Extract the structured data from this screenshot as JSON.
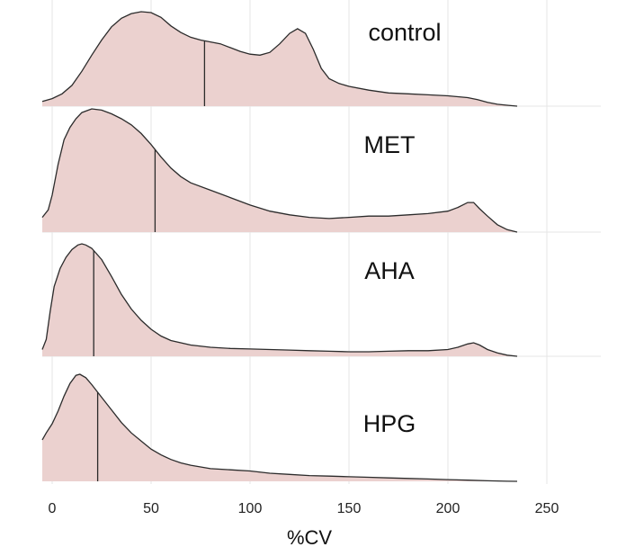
{
  "chart_data": {
    "type": "area",
    "subtype": "ridgeline density",
    "xlabel": "%CV",
    "ylabel": "",
    "xlim": [
      -5,
      265
    ],
    "xticks": [
      0,
      50,
      100,
      150,
      200,
      250
    ],
    "grid": true,
    "legend": "none",
    "fill_color": "#ebd1cf",
    "line_color": "#2b2b2b",
    "grid_color": "#e6e6e6",
    "series": [
      {
        "name": "control",
        "median": 77,
        "points": [
          [
            -5,
            0.05
          ],
          [
            0,
            0.08
          ],
          [
            5,
            0.13
          ],
          [
            10,
            0.22
          ],
          [
            15,
            0.37
          ],
          [
            20,
            0.54
          ],
          [
            25,
            0.7
          ],
          [
            30,
            0.84
          ],
          [
            35,
            0.93
          ],
          [
            40,
            0.98
          ],
          [
            45,
            1.0
          ],
          [
            50,
            0.99
          ],
          [
            55,
            0.94
          ],
          [
            60,
            0.85
          ],
          [
            65,
            0.78
          ],
          [
            70,
            0.73
          ],
          [
            75,
            0.7
          ],
          [
            80,
            0.68
          ],
          [
            85,
            0.66
          ],
          [
            90,
            0.62
          ],
          [
            95,
            0.58
          ],
          [
            100,
            0.55
          ],
          [
            105,
            0.54
          ],
          [
            110,
            0.57
          ],
          [
            115,
            0.66
          ],
          [
            120,
            0.77
          ],
          [
            124,
            0.82
          ],
          [
            128,
            0.77
          ],
          [
            132,
            0.6
          ],
          [
            136,
            0.4
          ],
          [
            140,
            0.29
          ],
          [
            145,
            0.24
          ],
          [
            150,
            0.21
          ],
          [
            160,
            0.17
          ],
          [
            170,
            0.14
          ],
          [
            180,
            0.13
          ],
          [
            190,
            0.12
          ],
          [
            200,
            0.11
          ],
          [
            205,
            0.1
          ],
          [
            210,
            0.09
          ],
          [
            215,
            0.07
          ],
          [
            220,
            0.04
          ],
          [
            225,
            0.02
          ],
          [
            230,
            0.01
          ],
          [
            235,
            0.0
          ]
        ]
      },
      {
        "name": "MET",
        "median": 52,
        "points": [
          [
            -5,
            0.12
          ],
          [
            -2,
            0.18
          ],
          [
            0,
            0.3
          ],
          [
            3,
            0.55
          ],
          [
            6,
            0.75
          ],
          [
            9,
            0.85
          ],
          [
            12,
            0.92
          ],
          [
            15,
            0.97
          ],
          [
            20,
            1.0
          ],
          [
            25,
            0.99
          ],
          [
            30,
            0.96
          ],
          [
            35,
            0.92
          ],
          [
            40,
            0.87
          ],
          [
            45,
            0.8
          ],
          [
            50,
            0.71
          ],
          [
            55,
            0.61
          ],
          [
            60,
            0.52
          ],
          [
            65,
            0.45
          ],
          [
            70,
            0.4
          ],
          [
            80,
            0.34
          ],
          [
            90,
            0.28
          ],
          [
            100,
            0.22
          ],
          [
            110,
            0.17
          ],
          [
            120,
            0.14
          ],
          [
            130,
            0.12
          ],
          [
            140,
            0.11
          ],
          [
            150,
            0.12
          ],
          [
            160,
            0.13
          ],
          [
            170,
            0.13
          ],
          [
            180,
            0.14
          ],
          [
            190,
            0.15
          ],
          [
            200,
            0.17
          ],
          [
            205,
            0.2
          ],
          [
            210,
            0.24
          ],
          [
            213,
            0.24
          ],
          [
            216,
            0.19
          ],
          [
            220,
            0.13
          ],
          [
            225,
            0.06
          ],
          [
            230,
            0.02
          ],
          [
            235,
            0.0
          ]
        ]
      },
      {
        "name": "AHA",
        "median": 21,
        "points": [
          [
            -5,
            0.06
          ],
          [
            -3,
            0.15
          ],
          [
            -1,
            0.4
          ],
          [
            1,
            0.62
          ],
          [
            4,
            0.78
          ],
          [
            7,
            0.88
          ],
          [
            10,
            0.95
          ],
          [
            13,
            0.99
          ],
          [
            15,
            1.0
          ],
          [
            17,
            0.99
          ],
          [
            20,
            0.96
          ],
          [
            25,
            0.86
          ],
          [
            30,
            0.71
          ],
          [
            35,
            0.55
          ],
          [
            40,
            0.42
          ],
          [
            45,
            0.32
          ],
          [
            50,
            0.24
          ],
          [
            55,
            0.18
          ],
          [
            60,
            0.14
          ],
          [
            70,
            0.1
          ],
          [
            80,
            0.08
          ],
          [
            90,
            0.07
          ],
          [
            100,
            0.065
          ],
          [
            110,
            0.06
          ],
          [
            120,
            0.055
          ],
          [
            130,
            0.05
          ],
          [
            140,
            0.045
          ],
          [
            150,
            0.04
          ],
          [
            160,
            0.04
          ],
          [
            170,
            0.045
          ],
          [
            180,
            0.05
          ],
          [
            190,
            0.05
          ],
          [
            200,
            0.06
          ],
          [
            205,
            0.08
          ],
          [
            210,
            0.11
          ],
          [
            213,
            0.12
          ],
          [
            216,
            0.1
          ],
          [
            220,
            0.06
          ],
          [
            225,
            0.03
          ],
          [
            230,
            0.01
          ],
          [
            235,
            0.0
          ]
        ]
      },
      {
        "name": "HPG",
        "median": 23,
        "points": [
          [
            -5,
            0.36
          ],
          [
            -3,
            0.42
          ],
          [
            0,
            0.5
          ],
          [
            3,
            0.61
          ],
          [
            6,
            0.74
          ],
          [
            9,
            0.85
          ],
          [
            12,
            0.92
          ],
          [
            14,
            0.93
          ],
          [
            17,
            0.9
          ],
          [
            20,
            0.84
          ],
          [
            25,
            0.73
          ],
          [
            30,
            0.62
          ],
          [
            35,
            0.51
          ],
          [
            40,
            0.42
          ],
          [
            45,
            0.35
          ],
          [
            50,
            0.28
          ],
          [
            55,
            0.23
          ],
          [
            60,
            0.19
          ],
          [
            65,
            0.16
          ],
          [
            70,
            0.14
          ],
          [
            80,
            0.11
          ],
          [
            90,
            0.1
          ],
          [
            100,
            0.09
          ],
          [
            110,
            0.07
          ],
          [
            120,
            0.06
          ],
          [
            130,
            0.05
          ],
          [
            140,
            0.045
          ],
          [
            150,
            0.04
          ],
          [
            160,
            0.035
          ],
          [
            170,
            0.03
          ],
          [
            180,
            0.025
          ],
          [
            190,
            0.02
          ],
          [
            200,
            0.015
          ],
          [
            210,
            0.01
          ],
          [
            220,
            0.005
          ],
          [
            225,
            0.003
          ],
          [
            230,
            0.001
          ],
          [
            235,
            0.0
          ]
        ]
      }
    ]
  }
}
